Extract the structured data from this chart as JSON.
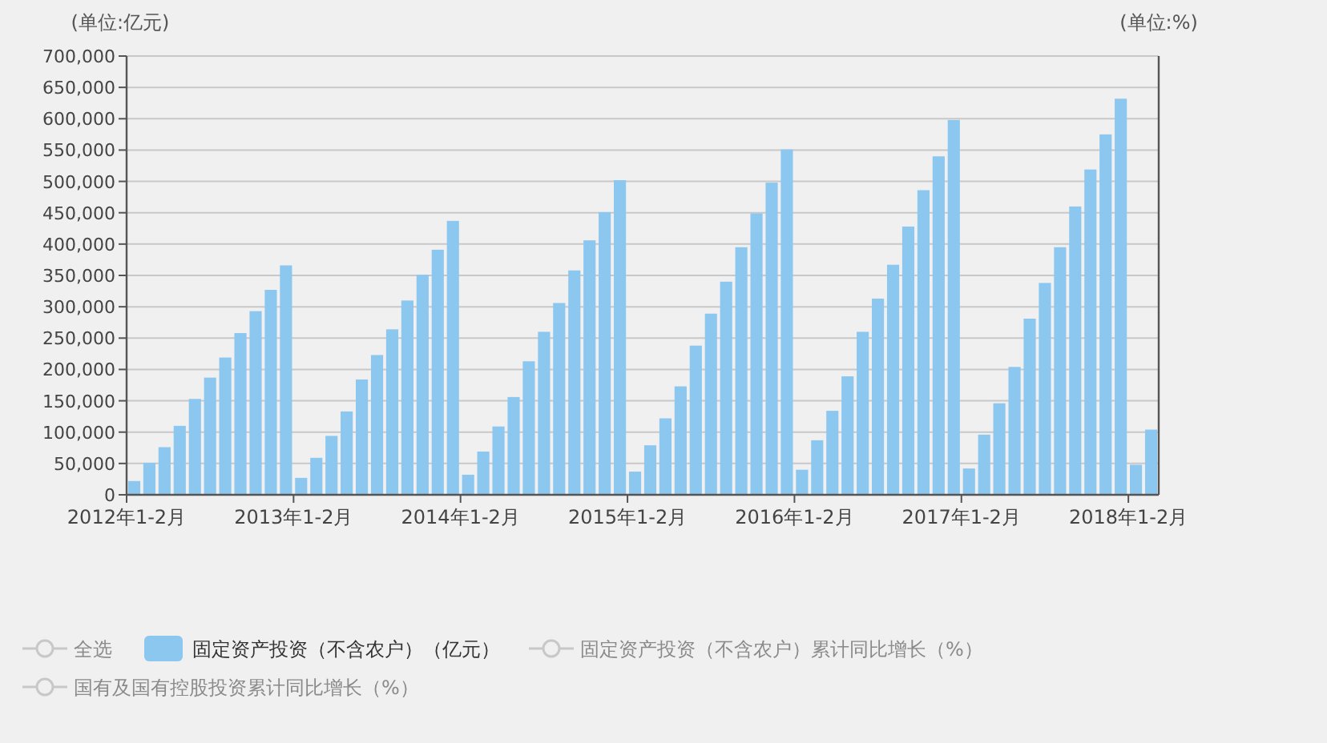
{
  "chart_data": {
    "type": "bar",
    "ylabel": "(单位:亿元)",
    "y2label": "(单位:%)",
    "categories": [
      "2012年1-2月",
      null,
      null,
      null,
      null,
      null,
      null,
      null,
      null,
      null,
      null,
      "2013年1-2月",
      null,
      null,
      null,
      null,
      null,
      null,
      null,
      null,
      null,
      null,
      "2014年1-2月",
      null,
      null,
      null,
      null,
      null,
      null,
      null,
      null,
      null,
      null,
      "2015年1-2月",
      null,
      null,
      null,
      null,
      null,
      null,
      null,
      null,
      null,
      null,
      "2016年1-2月",
      null,
      null,
      null,
      null,
      null,
      null,
      null,
      null,
      null,
      null,
      "2017年1-2月",
      null,
      null,
      null,
      null,
      null,
      null,
      null,
      null,
      null,
      null,
      "2018年1-2月",
      null
    ],
    "series": [
      {
        "name": "固定资产投资（不含农户）（亿元）",
        "color": "#8cc7f0",
        "values": [
          22000,
          51000,
          76000,
          110000,
          153000,
          187000,
          219000,
          258000,
          293000,
          327000,
          366000,
          27000,
          59000,
          94000,
          133000,
          184000,
          223000,
          264000,
          310000,
          351000,
          391000,
          437000,
          32000,
          69000,
          109000,
          156000,
          213000,
          260000,
          306000,
          358000,
          406000,
          451000,
          502000,
          37000,
          79000,
          122000,
          173000,
          238000,
          289000,
          340000,
          395000,
          449000,
          498000,
          551000,
          40000,
          87000,
          134000,
          189000,
          260000,
          313000,
          367000,
          428000,
          486000,
          540000,
          598000,
          42000,
          96000,
          146000,
          204000,
          281000,
          338000,
          395000,
          460000,
          519000,
          575000,
          632000,
          48000,
          104000
        ]
      }
    ],
    "ylim": [
      0,
      700000
    ],
    "yticks": [
      0,
      {
        "value": 50000,
        "label": "50,000"
      },
      {
        "value": 100000,
        "label": "100,000"
      },
      {
        "value": 150000,
        "label": "150,000"
      },
      {
        "value": 200000,
        "label": "200,000"
      },
      {
        "value": 250000,
        "label": "250,000"
      },
      {
        "value": 300000,
        "label": "300,000"
      },
      {
        "value": 350000,
        "label": "350,000"
      },
      {
        "value": 400000,
        "label": "400,000"
      },
      {
        "value": 450000,
        "label": "450,000"
      },
      {
        "value": 500000,
        "label": "500,000"
      },
      {
        "value": 550000,
        "label": "550,000"
      },
      {
        "value": 600000,
        "label": "600,000"
      },
      {
        "value": 650000,
        "label": "650,000"
      },
      {
        "value": 700000,
        "label": "700,000"
      }
    ],
    "grid": "y",
    "legend": "bottom",
    "annotations": [
      "全选",
      "固定资产投资（不含农户）累计同比增长（%）",
      "国有及国有控股投资累计同比增长（%）"
    ]
  }
}
